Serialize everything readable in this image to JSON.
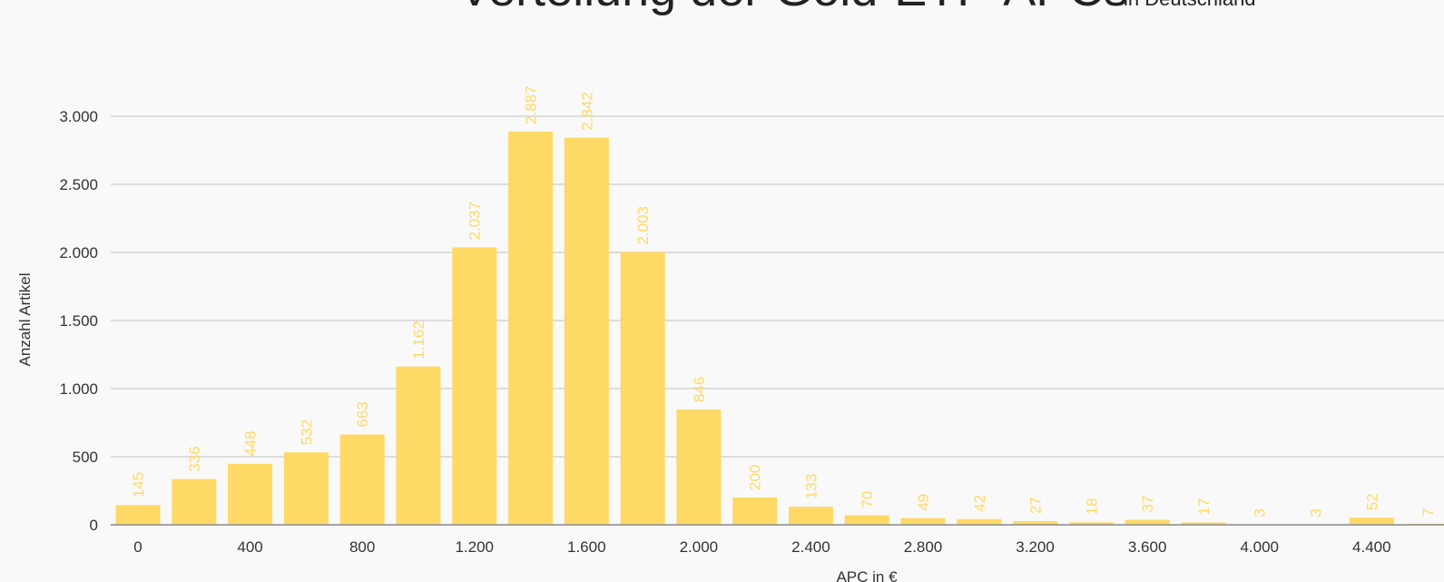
{
  "colors": {
    "bar": "#ffd966",
    "label": "#ffd966"
  },
  "chart_data": {
    "type": "bar",
    "title": "Verteilung der Gold-ETF-APCs",
    "subtitle": "in Deutschland",
    "xlabel": "APC in €",
    "ylabel": "Anzahl Artikel",
    "ylim": [
      0,
      3000
    ],
    "yticks": [
      {
        "value": 0,
        "label": "0"
      },
      {
        "value": 500,
        "label": "500"
      },
      {
        "value": 1000,
        "label": "1.000"
      },
      {
        "value": 1500,
        "label": "1.500"
      },
      {
        "value": 2000,
        "label": "2.000"
      },
      {
        "value": 2500,
        "label": "2.500"
      },
      {
        "value": 3000,
        "label": "3.000"
      }
    ],
    "xticks": [
      {
        "value": 0,
        "label": "0"
      },
      {
        "value": 400,
        "label": "400"
      },
      {
        "value": 800,
        "label": "800"
      },
      {
        "value": 1200,
        "label": "1.200"
      },
      {
        "value": 1600,
        "label": "1.600"
      },
      {
        "value": 2000,
        "label": "2.000"
      },
      {
        "value": 2400,
        "label": "2.400"
      },
      {
        "value": 2800,
        "label": "2.800"
      },
      {
        "value": 3200,
        "label": "3.200"
      },
      {
        "value": 3600,
        "label": "3.600"
      },
      {
        "value": 4000,
        "label": "4.000"
      },
      {
        "value": 4400,
        "label": "4.400"
      }
    ],
    "bin_width": 200,
    "bars": [
      {
        "x": 0,
        "value": 145,
        "label": "145"
      },
      {
        "x": 200,
        "value": 336,
        "label": "336"
      },
      {
        "x": 400,
        "value": 448,
        "label": "448"
      },
      {
        "x": 600,
        "value": 532,
        "label": "532"
      },
      {
        "x": 800,
        "value": 663,
        "label": "663"
      },
      {
        "x": 1000,
        "value": 1162,
        "label": "1.162"
      },
      {
        "x": 1200,
        "value": 2037,
        "label": "2.037"
      },
      {
        "x": 1400,
        "value": 2887,
        "label": "2.887"
      },
      {
        "x": 1600,
        "value": 2842,
        "label": "2.842"
      },
      {
        "x": 1800,
        "value": 2003,
        "label": "2.003"
      },
      {
        "x": 2000,
        "value": 846,
        "label": "846"
      },
      {
        "x": 2200,
        "value": 200,
        "label": "200"
      },
      {
        "x": 2400,
        "value": 133,
        "label": "133"
      },
      {
        "x": 2600,
        "value": 70,
        "label": "70"
      },
      {
        "x": 2800,
        "value": 49,
        "label": "49"
      },
      {
        "x": 3000,
        "value": 42,
        "label": "42"
      },
      {
        "x": 3200,
        "value": 27,
        "label": "27"
      },
      {
        "x": 3400,
        "value": 18,
        "label": "18"
      },
      {
        "x": 3600,
        "value": 37,
        "label": "37"
      },
      {
        "x": 3800,
        "value": 17,
        "label": "17"
      },
      {
        "x": 4000,
        "value": 3,
        "label": "3"
      },
      {
        "x": 4200,
        "value": 3,
        "label": "3"
      },
      {
        "x": 4400,
        "value": 52,
        "label": "52"
      },
      {
        "x": 4600,
        "value": 7,
        "label": "7"
      }
    ]
  }
}
